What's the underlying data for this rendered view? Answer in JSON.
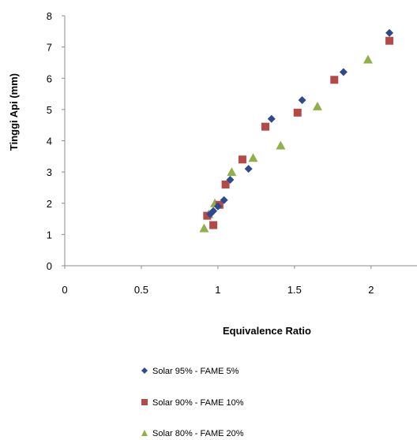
{
  "chart_data": {
    "type": "scatter",
    "xlabel": "Equivalence Ratio",
    "ylabel": "Tinggi Api (mm)",
    "xlim": [
      0,
      2.3
    ],
    "ylim": [
      0,
      8
    ],
    "xticks": [
      "0",
      "0.5",
      "1",
      "1.5",
      "2"
    ],
    "yticks": [
      "0",
      "1",
      "2",
      "3",
      "4",
      "5",
      "6",
      "7",
      "8"
    ],
    "grid": {
      "x": false,
      "y": false
    },
    "legend_position": "bottom",
    "series": [
      {
        "name": "Solar 95% - FAME 5%",
        "marker": "diamond",
        "color": "#2E4A8C",
        "points": [
          [
            0.95,
            1.65
          ],
          [
            0.97,
            1.75
          ],
          [
            1.0,
            1.9
          ],
          [
            1.04,
            2.1
          ],
          [
            1.08,
            2.75
          ],
          [
            1.2,
            3.1
          ],
          [
            1.35,
            4.7
          ],
          [
            1.55,
            5.3
          ],
          [
            1.82,
            6.2
          ],
          [
            2.12,
            7.45
          ]
        ]
      },
      {
        "name": "Solar 90% - FAME 10%",
        "marker": "square",
        "color": "#B24A48",
        "points": [
          [
            0.93,
            1.6
          ],
          [
            0.97,
            1.3
          ],
          [
            1.01,
            1.95
          ],
          [
            1.05,
            2.6
          ],
          [
            1.16,
            3.4
          ],
          [
            1.31,
            4.45
          ],
          [
            1.52,
            4.9
          ],
          [
            1.76,
            5.95
          ],
          [
            2.12,
            7.2
          ]
        ]
      },
      {
        "name": "Solar 80% - FAME 20%",
        "marker": "triangle",
        "color": "#8FB04A",
        "points": [
          [
            0.91,
            1.2
          ],
          [
            0.94,
            1.65
          ],
          [
            0.98,
            2.0
          ],
          [
            1.09,
            3.0
          ],
          [
            1.23,
            3.45
          ],
          [
            1.41,
            3.85
          ],
          [
            1.65,
            5.1
          ],
          [
            1.98,
            6.6
          ]
        ]
      }
    ]
  }
}
